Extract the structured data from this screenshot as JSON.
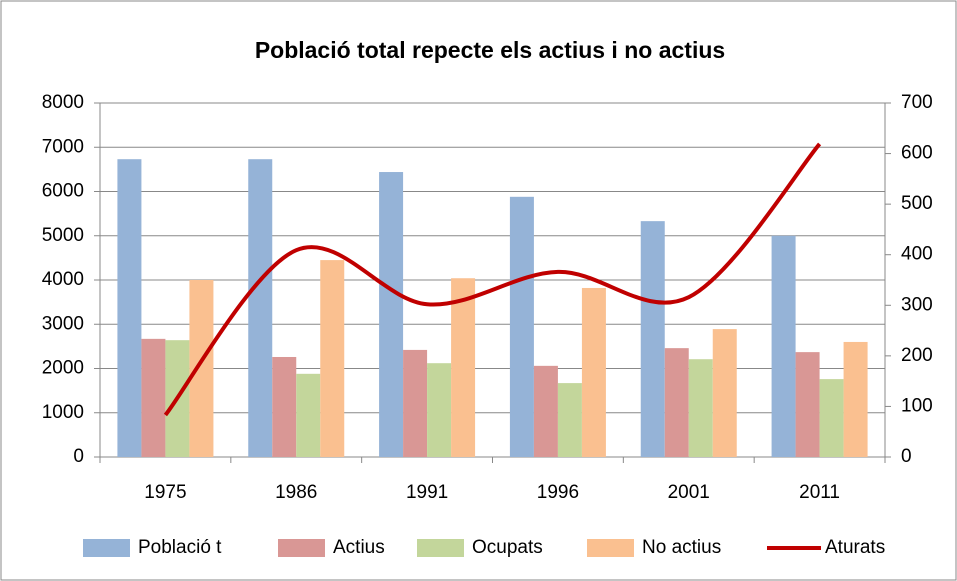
{
  "chart_data": {
    "type": "bar-line",
    "title": "Població total repecte els actius i no actius",
    "categories": [
      "1975",
      "1986",
      "1991",
      "1996",
      "2001",
      "2011"
    ],
    "series": [
      {
        "name": "Població t",
        "color": "#95b3d7",
        "type": "bar",
        "values": [
          6730,
          6730,
          6440,
          5880,
          5330,
          5000
        ]
      },
      {
        "name": "Actius",
        "color": "#d99795",
        "type": "bar",
        "values": [
          2670,
          2260,
          2420,
          2060,
          2460,
          2370
        ]
      },
      {
        "name": "Ocupats",
        "color": "#c3d69b",
        "type": "bar",
        "values": [
          2640,
          1880,
          2120,
          1670,
          2210,
          1760
        ]
      },
      {
        "name": "No actius",
        "color": "#fac090",
        "type": "bar",
        "values": [
          4000,
          4450,
          4040,
          3820,
          2890,
          2600
        ]
      },
      {
        "name": "Aturats",
        "color": "#c00000",
        "type": "line",
        "axis": "y2",
        "values": [
          83,
          409,
          302,
          366,
          316,
          619
        ]
      }
    ],
    "ylim": [
      0,
      8000
    ],
    "yticks": [
      0,
      1000,
      2000,
      3000,
      4000,
      5000,
      6000,
      7000,
      8000
    ],
    "y2lim": [
      0,
      700
    ],
    "y2ticks": [
      0,
      100,
      200,
      300,
      400,
      500,
      600,
      700
    ],
    "grid": true,
    "legend": "bottom"
  }
}
